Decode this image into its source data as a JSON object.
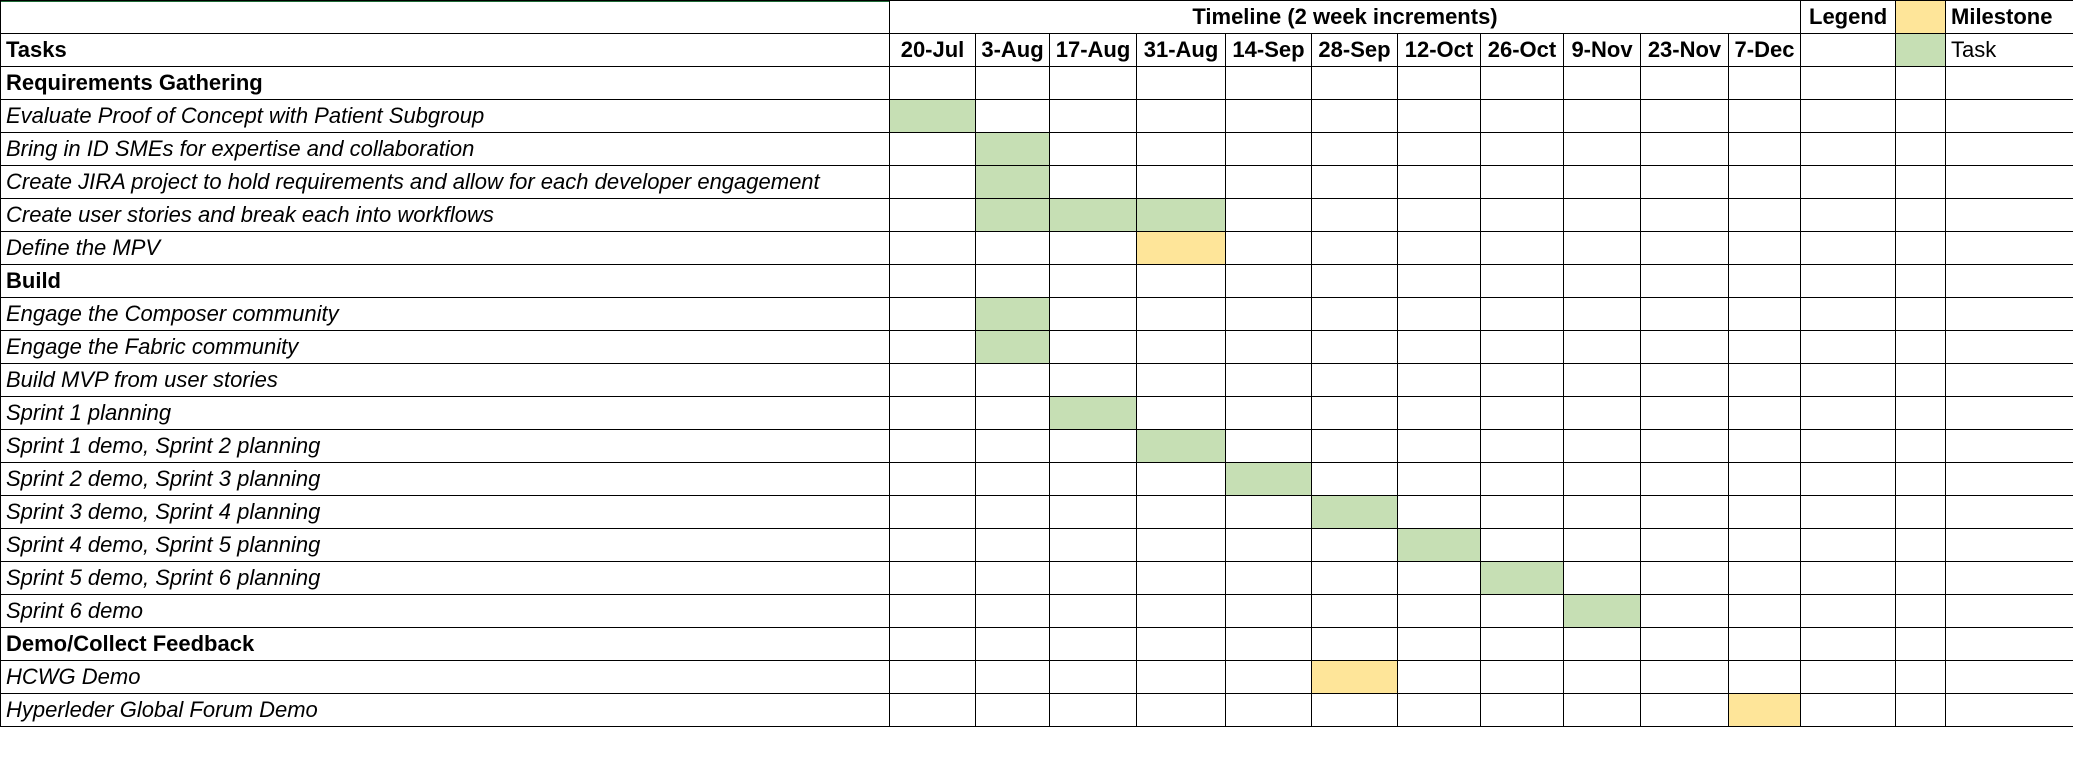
{
  "header": {
    "timeline_title": "Timeline  (2 week increments)",
    "tasks_label": "Tasks",
    "legend_title": "Legend",
    "legend_items": [
      {
        "label": "Milestone",
        "color": "#fee599"
      },
      {
        "label": "Task",
        "color": "#c6dfb4"
      }
    ]
  },
  "dates": [
    "20-Jul",
    "3-Aug",
    "17-Aug",
    "31-Aug",
    "14-Sep",
    "28-Sep",
    "12-Oct",
    "26-Oct",
    "9-Nov",
    "23-Nov",
    "7-Dec"
  ],
  "colors": {
    "task": "#c6dfb4",
    "milestone": "#fee599",
    "border": "#000000"
  },
  "rows": [
    {
      "label": "Requirements Gathering",
      "kind": "section",
      "cells": []
    },
    {
      "label": "Evaluate Proof of Concept with Patient Subgroup",
      "kind": "task",
      "cells": [
        {
          "col": 0,
          "type": "task"
        }
      ]
    },
    {
      "label": "Bring in ID SMEs for expertise and collaboration",
      "kind": "task",
      "cells": [
        {
          "col": 1,
          "type": "task"
        }
      ]
    },
    {
      "label": "Create JIRA project to hold requirements and allow for each developer engagement",
      "kind": "task",
      "cells": [
        {
          "col": 1,
          "type": "task"
        }
      ]
    },
    {
      "label": "Create user stories and break each into workflows",
      "kind": "task",
      "cells": [
        {
          "col": 1,
          "type": "task"
        },
        {
          "col": 2,
          "type": "task"
        },
        {
          "col": 3,
          "type": "task"
        }
      ]
    },
    {
      "label": "Define the MPV",
      "kind": "task",
      "cells": [
        {
          "col": 3,
          "type": "milestone"
        }
      ]
    },
    {
      "label": "Build",
      "kind": "section",
      "cells": []
    },
    {
      "label": "Engage the Composer community",
      "kind": "task",
      "cells": [
        {
          "col": 1,
          "type": "task"
        }
      ]
    },
    {
      "label": "Engage the Fabric community",
      "kind": "task",
      "cells": [
        {
          "col": 1,
          "type": "task"
        }
      ]
    },
    {
      "label": "Build MVP from user stories",
      "kind": "task",
      "cells": []
    },
    {
      "label": "Sprint 1 planning",
      "kind": "task",
      "cells": [
        {
          "col": 2,
          "type": "task"
        }
      ]
    },
    {
      "label": "Sprint 1 demo, Sprint 2 planning",
      "kind": "task",
      "cells": [
        {
          "col": 3,
          "type": "task"
        }
      ]
    },
    {
      "label": "Sprint 2 demo, Sprint 3 planning",
      "kind": "task",
      "cells": [
        {
          "col": 4,
          "type": "task"
        }
      ]
    },
    {
      "label": "Sprint 3 demo, Sprint 4 planning",
      "kind": "task",
      "cells": [
        {
          "col": 5,
          "type": "task"
        }
      ]
    },
    {
      "label": "Sprint 4 demo, Sprint 5 planning",
      "kind": "task",
      "cells": [
        {
          "col": 6,
          "type": "task"
        }
      ]
    },
    {
      "label": "Sprint 5 demo, Sprint 6 planning",
      "kind": "task",
      "cells": [
        {
          "col": 7,
          "type": "task"
        }
      ]
    },
    {
      "label": "Sprint 6 demo",
      "kind": "task",
      "cells": [
        {
          "col": 8,
          "type": "task"
        }
      ]
    },
    {
      "label": "Demo/Collect Feedback",
      "kind": "section",
      "cells": []
    },
    {
      "label": "HCWG Demo",
      "kind": "task",
      "cells": [
        {
          "col": 5,
          "type": "milestone"
        }
      ]
    },
    {
      "label": "Hyperleder Global Forum Demo",
      "kind": "task",
      "cells": [
        {
          "col": 10,
          "type": "milestone"
        }
      ]
    }
  ]
}
